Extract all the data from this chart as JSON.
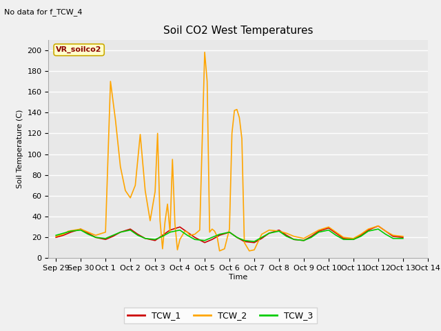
{
  "title": "Soil CO2 West Temperatures",
  "no_data_text": "No data for f_TCW_4",
  "ylabel": "Soil Temperature (C)",
  "xlabel": "Time",
  "ylim": [
    0,
    210
  ],
  "fig_bg": "#f0f0f0",
  "plot_bg": "#e8e8e8",
  "legend_label": "VR_soilco2",
  "legend_entries": [
    "TCW_1",
    "TCW_2",
    "TCW_3"
  ],
  "legend_colors": [
    "#cc0000",
    "#ffa500",
    "#00cc00"
  ],
  "x_tick_labels": [
    "Sep 29",
    "Sep 30",
    "Oct 1",
    "Oct 2",
    "Oct 3",
    "Oct 4",
    "Oct 5",
    "Oct 6",
    "Oct 7",
    "Oct 8",
    "Oct 9",
    "Oct 10",
    "Oct 11",
    "Oct 12",
    "Oct 13",
    "Oct 14"
  ],
  "tcw1_x": [
    0,
    0.3,
    0.6,
    1.0,
    1.3,
    1.6,
    2.0,
    2.3,
    2.6,
    3.0,
    3.3,
    3.6,
    4.0,
    4.3,
    4.6,
    5.0,
    5.3,
    5.6,
    6.0,
    6.3,
    6.6,
    7.0,
    7.3,
    7.6,
    8.0,
    8.3,
    8.6,
    9.0,
    9.3,
    9.6,
    10.0,
    10.3,
    10.6,
    11.0,
    11.3,
    11.6,
    12.0,
    12.3,
    12.6,
    13.0,
    13.3,
    13.6,
    14.0
  ],
  "tcw1_y": [
    20,
    22,
    25,
    28,
    24,
    20,
    18,
    21,
    25,
    28,
    23,
    19,
    17,
    22,
    27,
    30,
    25,
    20,
    15,
    18,
    22,
    25,
    20,
    16,
    15,
    19,
    24,
    27,
    22,
    18,
    17,
    21,
    26,
    29,
    24,
    19,
    18,
    22,
    27,
    31,
    26,
    21,
    20
  ],
  "tcw2_x": [
    0,
    0.3,
    0.5,
    1.0,
    1.3,
    1.6,
    2.0,
    2.2,
    2.4,
    2.6,
    2.8,
    3.0,
    3.2,
    3.4,
    3.6,
    3.8,
    4.0,
    4.1,
    4.2,
    4.3,
    4.4,
    4.5,
    4.6,
    4.7,
    4.8,
    4.9,
    5.0,
    5.1,
    5.2,
    5.3,
    5.4,
    5.6,
    5.8,
    6.0,
    6.1,
    6.2,
    6.3,
    6.4,
    6.5,
    6.6,
    6.7,
    6.8,
    7.0,
    7.1,
    7.2,
    7.3,
    7.4,
    7.5,
    7.6,
    7.8,
    8.0,
    8.3,
    8.6,
    9.0,
    9.3,
    9.6,
    10.0,
    10.3,
    10.6,
    11.0,
    11.3,
    11.6,
    12.0,
    12.3,
    12.6,
    13.0,
    13.3,
    13.6,
    14.0
  ],
  "tcw2_y": [
    21,
    23,
    26,
    28,
    25,
    22,
    25,
    170,
    133,
    88,
    65,
    58,
    70,
    119,
    65,
    36,
    64,
    120,
    36,
    9,
    35,
    52,
    25,
    95,
    33,
    8,
    18,
    22,
    26,
    25,
    22,
    23,
    27,
    198,
    170,
    25,
    28,
    26,
    21,
    7,
    8,
    9,
    28,
    120,
    142,
    143,
    135,
    115,
    15,
    7,
    8,
    23,
    27,
    26,
    24,
    21,
    19,
    23,
    27,
    30,
    25,
    20,
    19,
    23,
    28,
    31,
    26,
    22,
    21
  ],
  "tcw3_x": [
    0,
    0.3,
    0.6,
    1.0,
    1.3,
    1.6,
    2.0,
    2.3,
    2.6,
    3.0,
    3.3,
    3.6,
    4.0,
    4.3,
    4.6,
    5.0,
    5.3,
    5.6,
    6.0,
    6.3,
    6.6,
    7.0,
    7.3,
    7.6,
    8.0,
    8.3,
    8.6,
    9.0,
    9.3,
    9.6,
    10.0,
    10.3,
    10.6,
    11.0,
    11.3,
    11.6,
    12.0,
    12.3,
    12.6,
    13.0,
    13.3,
    13.6,
    14.0
  ],
  "tcw3_y": [
    22,
    24,
    26,
    27,
    23,
    20,
    19,
    22,
    25,
    27,
    22,
    19,
    18,
    21,
    25,
    27,
    22,
    18,
    17,
    20,
    23,
    25,
    20,
    17,
    16,
    20,
    24,
    26,
    21,
    18,
    17,
    20,
    25,
    27,
    22,
    18,
    18,
    21,
    26,
    28,
    23,
    19,
    19
  ]
}
